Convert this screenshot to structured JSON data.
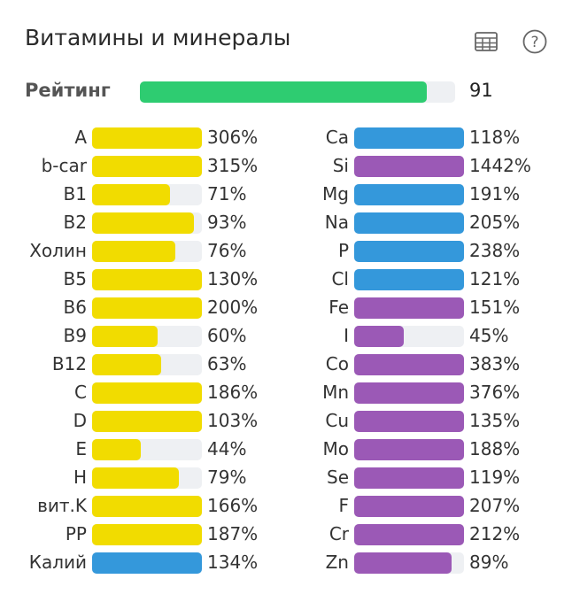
{
  "header": {
    "title": "Витамины и минералы",
    "icons": [
      "table-icon",
      "help-icon"
    ]
  },
  "rating": {
    "label": "Рейтинг",
    "value": "91",
    "fill_percent": 91,
    "color": "#2ecc71"
  },
  "colors": {
    "vitamin": "#f1dc00",
    "macro": "#3498db",
    "micro": "#9b59b6",
    "track": "#eef0f3"
  },
  "left": [
    {
      "label": "A",
      "value": "306%",
      "pct": 306,
      "kind": "vitamin"
    },
    {
      "label": "b-car",
      "value": "315%",
      "pct": 315,
      "kind": "vitamin"
    },
    {
      "label": "B1",
      "value": "71%",
      "pct": 71,
      "kind": "vitamin"
    },
    {
      "label": "B2",
      "value": "93%",
      "pct": 93,
      "kind": "vitamin"
    },
    {
      "label": "Холин",
      "value": "76%",
      "pct": 76,
      "kind": "vitamin"
    },
    {
      "label": "B5",
      "value": "130%",
      "pct": 130,
      "kind": "vitamin"
    },
    {
      "label": "B6",
      "value": "200%",
      "pct": 200,
      "kind": "vitamin"
    },
    {
      "label": "B9",
      "value": "60%",
      "pct": 60,
      "kind": "vitamin"
    },
    {
      "label": "B12",
      "value": "63%",
      "pct": 63,
      "kind": "vitamin"
    },
    {
      "label": "C",
      "value": "186%",
      "pct": 186,
      "kind": "vitamin"
    },
    {
      "label": "D",
      "value": "103%",
      "pct": 103,
      "kind": "vitamin"
    },
    {
      "label": "E",
      "value": "44%",
      "pct": 44,
      "kind": "vitamin"
    },
    {
      "label": "H",
      "value": "79%",
      "pct": 79,
      "kind": "vitamin"
    },
    {
      "label": "вит.K",
      "value": "166%",
      "pct": 166,
      "kind": "vitamin"
    },
    {
      "label": "PP",
      "value": "187%",
      "pct": 187,
      "kind": "vitamin"
    },
    {
      "label": "Калий",
      "value": "134%",
      "pct": 134,
      "kind": "macro"
    }
  ],
  "right": [
    {
      "label": "Ca",
      "value": "118%",
      "pct": 118,
      "kind": "macro"
    },
    {
      "label": "Si",
      "value": "1442%",
      "pct": 1442,
      "kind": "micro"
    },
    {
      "label": "Mg",
      "value": "191%",
      "pct": 191,
      "kind": "macro"
    },
    {
      "label": "Na",
      "value": "205%",
      "pct": 205,
      "kind": "macro"
    },
    {
      "label": "P",
      "value": "238%",
      "pct": 238,
      "kind": "macro"
    },
    {
      "label": "Cl",
      "value": "121%",
      "pct": 121,
      "kind": "macro"
    },
    {
      "label": "Fe",
      "value": "151%",
      "pct": 151,
      "kind": "micro"
    },
    {
      "label": "I",
      "value": "45%",
      "pct": 45,
      "kind": "micro"
    },
    {
      "label": "Co",
      "value": "383%",
      "pct": 383,
      "kind": "micro"
    },
    {
      "label": "Mn",
      "value": "376%",
      "pct": 376,
      "kind": "micro"
    },
    {
      "label": "Cu",
      "value": "135%",
      "pct": 135,
      "kind": "micro"
    },
    {
      "label": "Mo",
      "value": "188%",
      "pct": 188,
      "kind": "micro"
    },
    {
      "label": "Se",
      "value": "119%",
      "pct": 119,
      "kind": "micro"
    },
    {
      "label": "F",
      "value": "207%",
      "pct": 207,
      "kind": "micro"
    },
    {
      "label": "Cr",
      "value": "212%",
      "pct": 212,
      "kind": "micro"
    },
    {
      "label": "Zn",
      "value": "89%",
      "pct": 89,
      "kind": "micro"
    }
  ]
}
